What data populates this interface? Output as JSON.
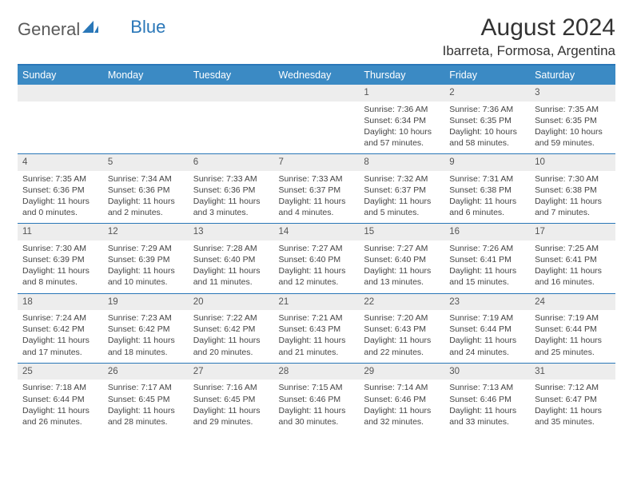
{
  "logo": {
    "word1": "General",
    "word2": "Blue"
  },
  "header": {
    "title": "August 2024",
    "location": "Ibarreta, Formosa, Argentina"
  },
  "colors": {
    "accent": "#3b8ac4",
    "rule": "#2a77b8",
    "daynum_bg": "#ededed",
    "text": "#333333",
    "logo_blue": "#2a77b8",
    "logo_gray": "#5a5a5a"
  },
  "day_headers": [
    "Sunday",
    "Monday",
    "Tuesday",
    "Wednesday",
    "Thursday",
    "Friday",
    "Saturday"
  ],
  "weeks": [
    [
      null,
      null,
      null,
      null,
      {
        "n": "1",
        "sr": "Sunrise: 7:36 AM",
        "ss": "Sunset: 6:34 PM",
        "dl": "Daylight: 10 hours and 57 minutes."
      },
      {
        "n": "2",
        "sr": "Sunrise: 7:36 AM",
        "ss": "Sunset: 6:35 PM",
        "dl": "Daylight: 10 hours and 58 minutes."
      },
      {
        "n": "3",
        "sr": "Sunrise: 7:35 AM",
        "ss": "Sunset: 6:35 PM",
        "dl": "Daylight: 10 hours and 59 minutes."
      }
    ],
    [
      {
        "n": "4",
        "sr": "Sunrise: 7:35 AM",
        "ss": "Sunset: 6:36 PM",
        "dl": "Daylight: 11 hours and 0 minutes."
      },
      {
        "n": "5",
        "sr": "Sunrise: 7:34 AM",
        "ss": "Sunset: 6:36 PM",
        "dl": "Daylight: 11 hours and 2 minutes."
      },
      {
        "n": "6",
        "sr": "Sunrise: 7:33 AM",
        "ss": "Sunset: 6:36 PM",
        "dl": "Daylight: 11 hours and 3 minutes."
      },
      {
        "n": "7",
        "sr": "Sunrise: 7:33 AM",
        "ss": "Sunset: 6:37 PM",
        "dl": "Daylight: 11 hours and 4 minutes."
      },
      {
        "n": "8",
        "sr": "Sunrise: 7:32 AM",
        "ss": "Sunset: 6:37 PM",
        "dl": "Daylight: 11 hours and 5 minutes."
      },
      {
        "n": "9",
        "sr": "Sunrise: 7:31 AM",
        "ss": "Sunset: 6:38 PM",
        "dl": "Daylight: 11 hours and 6 minutes."
      },
      {
        "n": "10",
        "sr": "Sunrise: 7:30 AM",
        "ss": "Sunset: 6:38 PM",
        "dl": "Daylight: 11 hours and 7 minutes."
      }
    ],
    [
      {
        "n": "11",
        "sr": "Sunrise: 7:30 AM",
        "ss": "Sunset: 6:39 PM",
        "dl": "Daylight: 11 hours and 8 minutes."
      },
      {
        "n": "12",
        "sr": "Sunrise: 7:29 AM",
        "ss": "Sunset: 6:39 PM",
        "dl": "Daylight: 11 hours and 10 minutes."
      },
      {
        "n": "13",
        "sr": "Sunrise: 7:28 AM",
        "ss": "Sunset: 6:40 PM",
        "dl": "Daylight: 11 hours and 11 minutes."
      },
      {
        "n": "14",
        "sr": "Sunrise: 7:27 AM",
        "ss": "Sunset: 6:40 PM",
        "dl": "Daylight: 11 hours and 12 minutes."
      },
      {
        "n": "15",
        "sr": "Sunrise: 7:27 AM",
        "ss": "Sunset: 6:40 PM",
        "dl": "Daylight: 11 hours and 13 minutes."
      },
      {
        "n": "16",
        "sr": "Sunrise: 7:26 AM",
        "ss": "Sunset: 6:41 PM",
        "dl": "Daylight: 11 hours and 15 minutes."
      },
      {
        "n": "17",
        "sr": "Sunrise: 7:25 AM",
        "ss": "Sunset: 6:41 PM",
        "dl": "Daylight: 11 hours and 16 minutes."
      }
    ],
    [
      {
        "n": "18",
        "sr": "Sunrise: 7:24 AM",
        "ss": "Sunset: 6:42 PM",
        "dl": "Daylight: 11 hours and 17 minutes."
      },
      {
        "n": "19",
        "sr": "Sunrise: 7:23 AM",
        "ss": "Sunset: 6:42 PM",
        "dl": "Daylight: 11 hours and 18 minutes."
      },
      {
        "n": "20",
        "sr": "Sunrise: 7:22 AM",
        "ss": "Sunset: 6:42 PM",
        "dl": "Daylight: 11 hours and 20 minutes."
      },
      {
        "n": "21",
        "sr": "Sunrise: 7:21 AM",
        "ss": "Sunset: 6:43 PM",
        "dl": "Daylight: 11 hours and 21 minutes."
      },
      {
        "n": "22",
        "sr": "Sunrise: 7:20 AM",
        "ss": "Sunset: 6:43 PM",
        "dl": "Daylight: 11 hours and 22 minutes."
      },
      {
        "n": "23",
        "sr": "Sunrise: 7:19 AM",
        "ss": "Sunset: 6:44 PM",
        "dl": "Daylight: 11 hours and 24 minutes."
      },
      {
        "n": "24",
        "sr": "Sunrise: 7:19 AM",
        "ss": "Sunset: 6:44 PM",
        "dl": "Daylight: 11 hours and 25 minutes."
      }
    ],
    [
      {
        "n": "25",
        "sr": "Sunrise: 7:18 AM",
        "ss": "Sunset: 6:44 PM",
        "dl": "Daylight: 11 hours and 26 minutes."
      },
      {
        "n": "26",
        "sr": "Sunrise: 7:17 AM",
        "ss": "Sunset: 6:45 PM",
        "dl": "Daylight: 11 hours and 28 minutes."
      },
      {
        "n": "27",
        "sr": "Sunrise: 7:16 AM",
        "ss": "Sunset: 6:45 PM",
        "dl": "Daylight: 11 hours and 29 minutes."
      },
      {
        "n": "28",
        "sr": "Sunrise: 7:15 AM",
        "ss": "Sunset: 6:46 PM",
        "dl": "Daylight: 11 hours and 30 minutes."
      },
      {
        "n": "29",
        "sr": "Sunrise: 7:14 AM",
        "ss": "Sunset: 6:46 PM",
        "dl": "Daylight: 11 hours and 32 minutes."
      },
      {
        "n": "30",
        "sr": "Sunrise: 7:13 AM",
        "ss": "Sunset: 6:46 PM",
        "dl": "Daylight: 11 hours and 33 minutes."
      },
      {
        "n": "31",
        "sr": "Sunrise: 7:12 AM",
        "ss": "Sunset: 6:47 PM",
        "dl": "Daylight: 11 hours and 35 minutes."
      }
    ]
  ]
}
